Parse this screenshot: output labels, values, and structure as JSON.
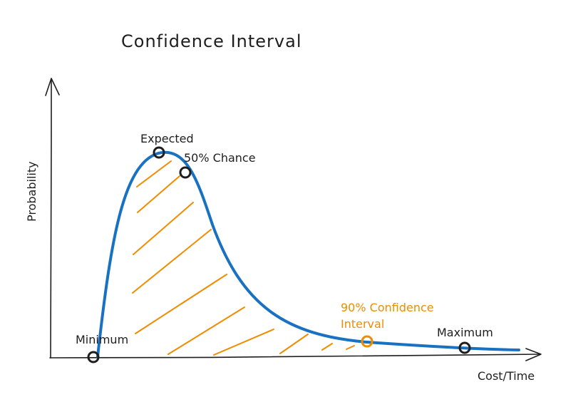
{
  "title": "Confidence Interval",
  "axes": {
    "x_label": "Cost/Time",
    "y_label": "Probability"
  },
  "points": {
    "minimum": "Minimum",
    "expected": "Expected",
    "fifty_percent": "50% Chance",
    "confidence_line1": "90% Confidence",
    "confidence_line2": "Interval",
    "maximum": "Maximum"
  },
  "colors": {
    "curve": "#1971c2",
    "hatch": "#f08c00",
    "ink": "#1e1e1e"
  }
}
